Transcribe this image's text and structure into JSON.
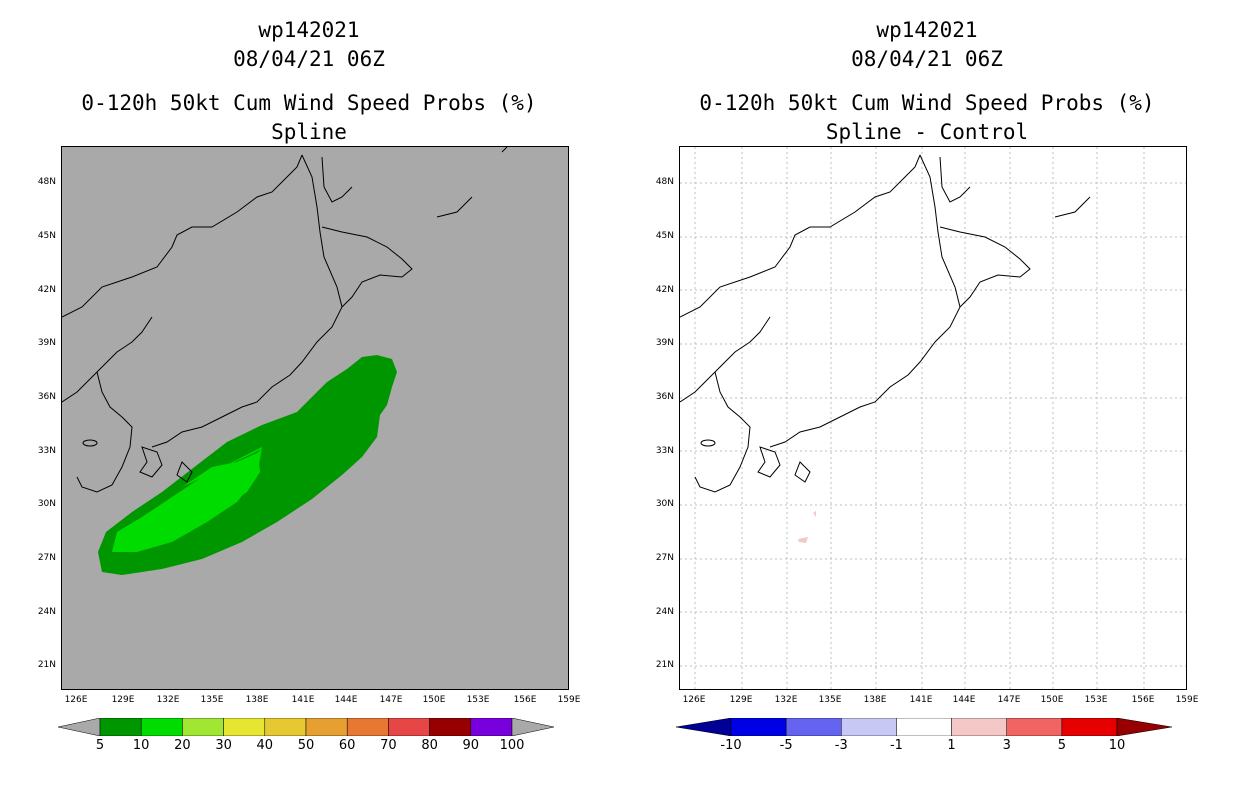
{
  "left": {
    "title_line1": "wp142021",
    "title_line2": "08/04/21 06Z",
    "title_line3": "0-120h 50kt Cum Wind Speed Probs (%)",
    "title_line4": "Spline",
    "colorbar": {
      "colors": [
        "#009600",
        "#00dc00",
        "#a0e632",
        "#e6e632",
        "#e6c832",
        "#e6a032",
        "#e67832",
        "#e64646",
        "#960000",
        "#7800dc"
      ],
      "labels": [
        "5",
        "10",
        "20",
        "30",
        "40",
        "50",
        "60",
        "70",
        "80",
        "90",
        "100"
      ]
    }
  },
  "right": {
    "title_line1": "wp142021",
    "title_line2": "08/04/21 06Z",
    "title_line3": "0-120h 50kt Cum Wind Speed Probs (%)",
    "title_line4": "Spline - Control",
    "colorbar": {
      "colors": [
        "#0000e6",
        "#6464f0",
        "#c8c8f5",
        "#ffffff",
        "#f5c8c8",
        "#f06464",
        "#e60000"
      ],
      "end_colors": [
        "#000096",
        "#960000"
      ],
      "labels": [
        "-10",
        "-5",
        "-3",
        "-1",
        "1",
        "3",
        "5",
        "10"
      ]
    }
  },
  "axes": {
    "lat_labels": [
      "48N",
      "45N",
      "42N",
      "39N",
      "36N",
      "33N",
      "30N",
      "27N",
      "24N",
      "21N"
    ],
    "lon_labels": [
      "126E",
      "129E",
      "132E",
      "135E",
      "138E",
      "141E",
      "144E",
      "147E",
      "150E",
      "153E",
      "156E",
      "159E"
    ]
  },
  "colors": {
    "map_background_left": "#a9a9a9",
    "prob_5_10": "#009600",
    "prob_10_20": "#00dc00",
    "diff_positive_small": "#f5c8c8"
  }
}
